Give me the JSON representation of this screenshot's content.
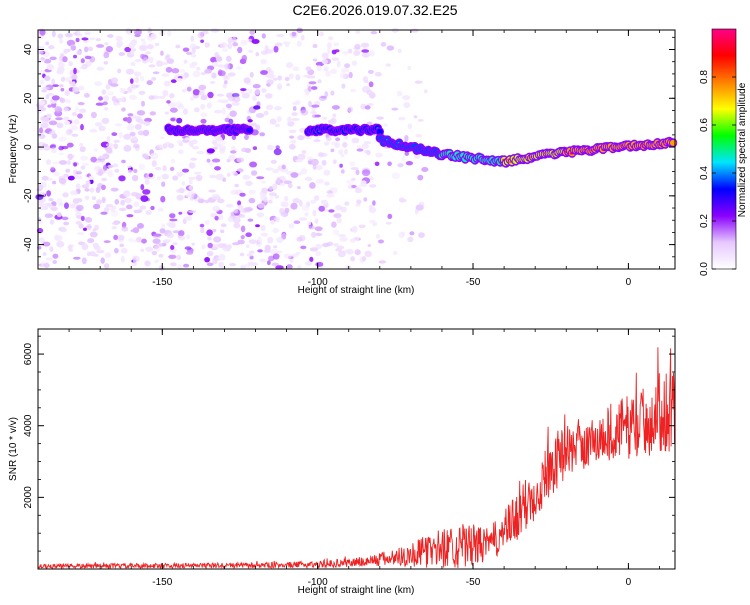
{
  "title": "C2E6.2026.019.07.32.E25",
  "chart_data": [
    {
      "type": "heatmap",
      "name": "spectrogram",
      "xlabel": "Height of straight line (km)",
      "ylabel": "Frequency (Hz)",
      "xlim": [
        -190,
        15
      ],
      "ylim": [
        -50,
        48
      ],
      "xticks": [
        -150,
        -100,
        -50,
        0
      ],
      "xtick_labels": [
        "-150",
        "-100",
        "-50",
        "0"
      ],
      "yticks": [
        -40,
        -20,
        0,
        20,
        40
      ],
      "ytick_labels": [
        "-40",
        "-20",
        "0",
        "20",
        "40"
      ],
      "colorbar": {
        "label": "Normalized spectral amplitude",
        "range": [
          0,
          1
        ],
        "ticks": [
          0.0,
          0.2,
          0.4,
          0.6,
          0.8
        ],
        "tick_labels": [
          "0.0",
          "0.2",
          "0.4",
          "0.6",
          "0.8"
        ],
        "colormap": [
          "#ffffff",
          "#e6c8ff",
          "#8a00ff",
          "#0000ff",
          "#00e5ff",
          "#00ff00",
          "#ffff00",
          "#ff8000",
          "#ff0000",
          "#ff0088"
        ]
      },
      "signal_track": {
        "segments": [
          {
            "x": [
              -148,
              -122
            ],
            "freq": 7,
            "amplitude": 0.25
          },
          {
            "x": [
              -103,
              -80
            ],
            "freq": 7,
            "amplitude": 0.3
          },
          {
            "x": [
              -80,
              -60
            ],
            "freq": [
              3,
              -3
            ],
            "amplitude": 0.35
          },
          {
            "x": [
              -60,
              -40
            ],
            "freq": [
              -3,
              -6
            ],
            "amplitude": 0.5
          },
          {
            "x": [
              -40,
              -20
            ],
            "freq": [
              -6,
              -2
            ],
            "amplitude": 0.75
          },
          {
            "x": [
              -20,
              15
            ],
            "freq": [
              -2,
              2
            ],
            "amplitude": 0.9
          }
        ]
      },
      "noise_region": {
        "x": [
          -190,
          -75
        ],
        "freq": [
          -50,
          48
        ],
        "amplitude": 0.15
      }
    },
    {
      "type": "line",
      "name": "snr",
      "xlabel": "Height of straight line (km)",
      "ylabel": "SNR (10 * v/v)",
      "xlim": [
        -190,
        15
      ],
      "ylim": [
        0,
        6700
      ],
      "xticks": [
        -150,
        -100,
        -50,
        0
      ],
      "xtick_labels": [
        "-150",
        "-100",
        "-50",
        "0"
      ],
      "yticks": [
        2000,
        4000,
        6000
      ],
      "ytick_labels": [
        "2000",
        "4000",
        "6000"
      ],
      "color": "#ee2222",
      "envelope": {
        "x": [
          -190,
          -150,
          -120,
          -100,
          -85,
          -75,
          -65,
          -58,
          -52,
          -45,
          -40,
          -35,
          -30,
          -25,
          -20,
          -15,
          -10,
          -5,
          0,
          5,
          10,
          15
        ],
        "base": [
          60,
          70,
          80,
          100,
          160,
          250,
          350,
          450,
          450,
          550,
          850,
          1300,
          1900,
          2600,
          3100,
          3200,
          3400,
          3600,
          3700,
          3800,
          4000,
          4200
        ],
        "spread": [
          120,
          140,
          150,
          180,
          300,
          500,
          900,
          1200,
          1300,
          900,
          1200,
          1500,
          1600,
          1700,
          1500,
          1300,
          1400,
          1700,
          1800,
          2000,
          2300,
          2500
        ]
      }
    }
  ]
}
